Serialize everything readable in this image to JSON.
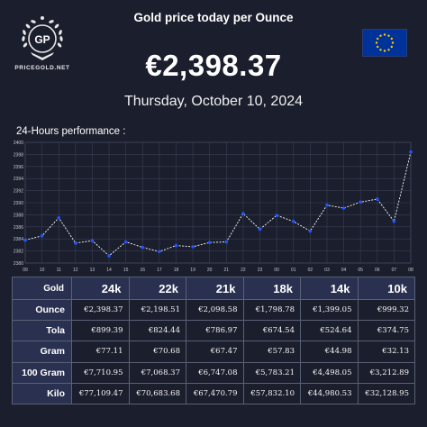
{
  "brand": {
    "name": "PRICEGOLD.NET",
    "monogram": "GP"
  },
  "header": {
    "title": "Gold price today per Ounce",
    "price": "€2,398.37",
    "date": "Thursday, October 10, 2024"
  },
  "flag": {
    "name": "eu-flag",
    "colors": {
      "field": "#003399",
      "stars": "#ffcc00"
    }
  },
  "performance_label": "24-Hours performance :",
  "chart_data": {
    "type": "line",
    "x": [
      "09",
      "10",
      "11",
      "12",
      "13",
      "14",
      "15",
      "16",
      "17",
      "18",
      "19",
      "20",
      "21",
      "22",
      "23",
      "00",
      "01",
      "02",
      "03",
      "04",
      "05",
      "06",
      "07",
      "08"
    ],
    "values": [
      2383.8,
      2384.5,
      2387.5,
      2383.3,
      2383.7,
      2381.2,
      2383.5,
      2382.6,
      2381.9,
      2382.9,
      2382.7,
      2383.4,
      2383.5,
      2388.2,
      2385.6,
      2387.9,
      2386.9,
      2385.3,
      2389.6,
      2389.1,
      2390.1,
      2390.6,
      2386.9,
      2398.4
    ],
    "yticks": [
      2380,
      2382,
      2384,
      2386,
      2388,
      2390,
      2392,
      2394,
      2396,
      2398,
      2400
    ],
    "ylim": [
      2380,
      2400
    ],
    "grid": true,
    "colors": {
      "line": "#ffffff",
      "marker": "#2255ff",
      "grid": "#3a3f55"
    }
  },
  "table": {
    "corner": "Gold",
    "columns": [
      "24k",
      "22k",
      "21k",
      "18k",
      "14k",
      "10k"
    ],
    "rows": [
      {
        "label": "Ounce",
        "cells": [
          "€2,398.37",
          "€2,198.51",
          "€2,098.58",
          "€1,798.78",
          "€1,399.05",
          "€999.32"
        ]
      },
      {
        "label": "Tola",
        "cells": [
          "€899.39",
          "€824.44",
          "€786.97",
          "€674.54",
          "€524.64",
          "€374.75"
        ]
      },
      {
        "label": "Gram",
        "cells": [
          "€77.11",
          "€70.68",
          "€67.47",
          "€57.83",
          "€44.98",
          "€32.13"
        ]
      },
      {
        "label": "100 Gram",
        "cells": [
          "€7,710.95",
          "€7,068.37",
          "€6,747.08",
          "€5,783.21",
          "€4,498.05",
          "€3,212.89"
        ]
      },
      {
        "label": "Kilo",
        "cells": [
          "€77,109.47",
          "€70,683.68",
          "€67,470.79",
          "€57,832.10",
          "€44,980.53",
          "€32,128.95"
        ]
      }
    ]
  }
}
